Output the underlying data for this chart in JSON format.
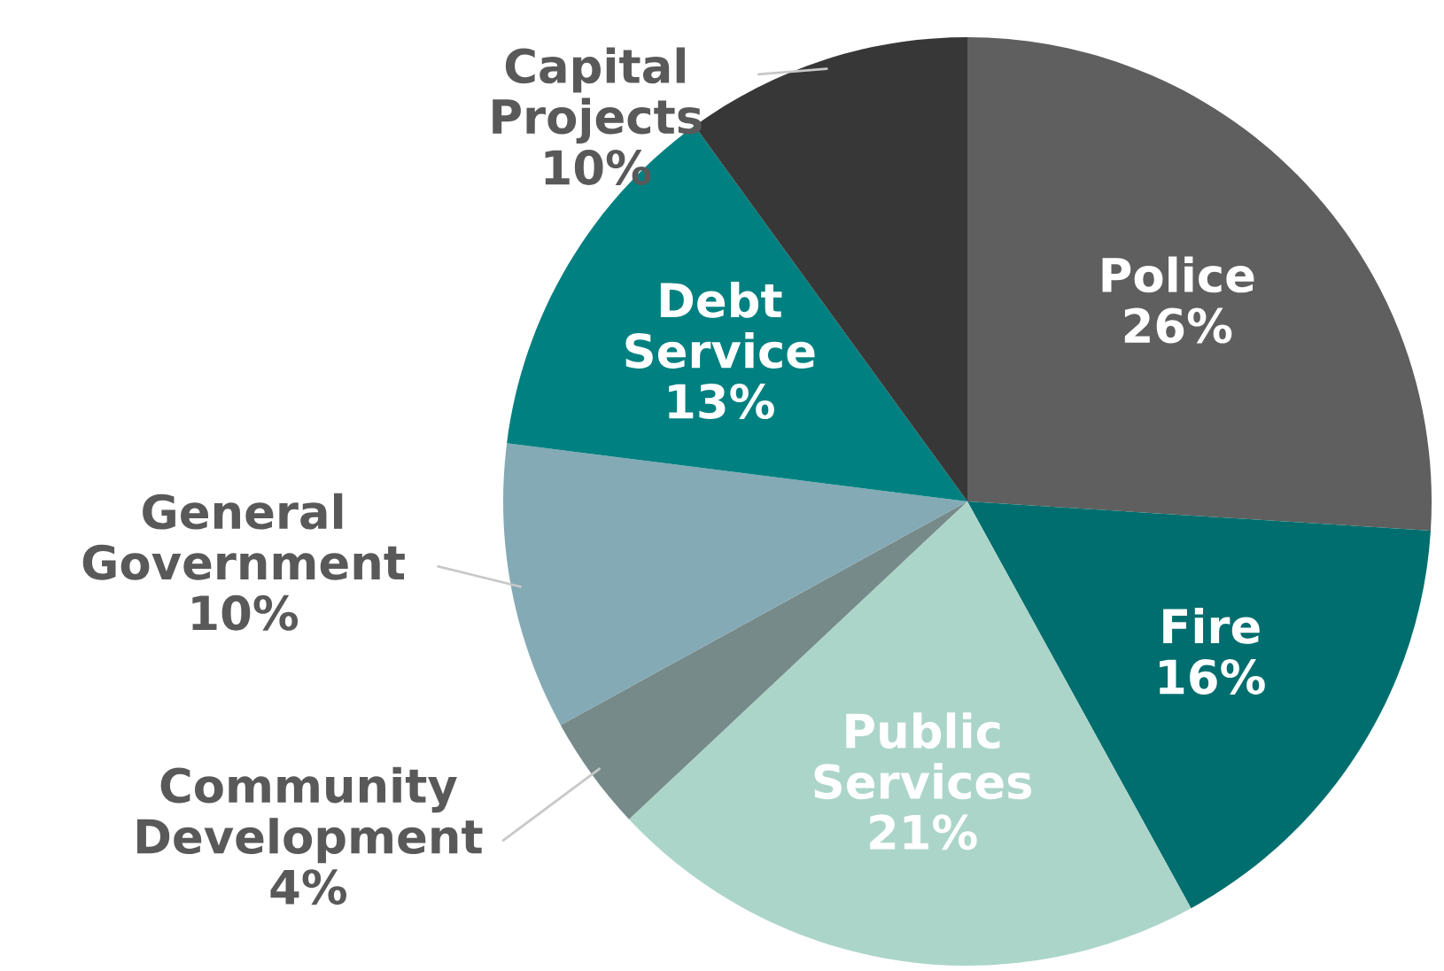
{
  "chart_data": {
    "type": "pie",
    "categories": [
      "Police",
      "Fire",
      "Public Services",
      "Community Development",
      "General Government",
      "Debt Service",
      "Capital Projects"
    ],
    "values": [
      26,
      16,
      21,
      4,
      10,
      13,
      10
    ],
    "colors": [
      "#5f5f5f",
      "#006e6e",
      "#acd5c9",
      "#768a8a",
      "#84aab5",
      "#008080",
      "#373737"
    ],
    "value_labels": [
      "26%",
      "16%",
      "21%",
      "4%",
      "10%",
      "13%",
      "10%"
    ]
  }
}
